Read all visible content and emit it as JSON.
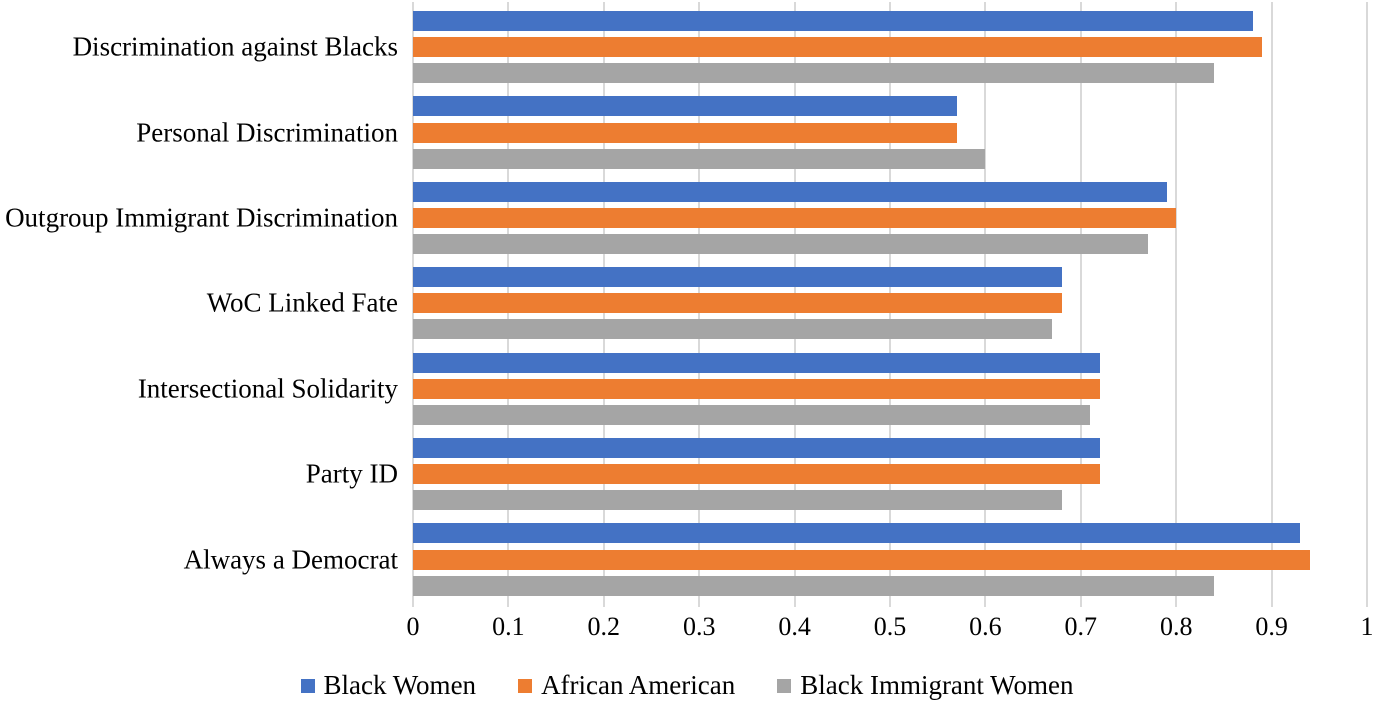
{
  "figure": {
    "background": "#FFFFFF"
  },
  "chart_data": {
    "type": "bar",
    "orientation": "horizontal",
    "title": "",
    "xlabel": "",
    "ylabel": "",
    "xlim": [
      0,
      1
    ],
    "x_ticks": [
      "0",
      "0.1",
      "0.2",
      "0.3",
      "0.4",
      "0.5",
      "0.6",
      "0.7",
      "0.8",
      "0.9",
      "1"
    ],
    "grid": true,
    "gridline_color": "#D9D9D9",
    "legend_position": "bottom",
    "categories": [
      "Discrimination against Blacks",
      "Personal Discrimination",
      "Outgroup Immigrant Discrimination",
      "WoC Linked Fate",
      "Intersectional Solidarity",
      "Party ID",
      "Always a Democrat"
    ],
    "series": [
      {
        "name": "Black Women",
        "color": "#4472C4",
        "values": [
          0.88,
          0.57,
          0.79,
          0.68,
          0.72,
          0.72,
          0.93
        ]
      },
      {
        "name": "African American",
        "color": "#ED7D31",
        "values": [
          0.89,
          0.57,
          0.8,
          0.68,
          0.72,
          0.72,
          0.94
        ]
      },
      {
        "name": "Black Immigrant Women",
        "color": "#A5A5A5",
        "values": [
          0.84,
          0.6,
          0.77,
          0.67,
          0.71,
          0.68,
          0.84
        ]
      }
    ]
  }
}
